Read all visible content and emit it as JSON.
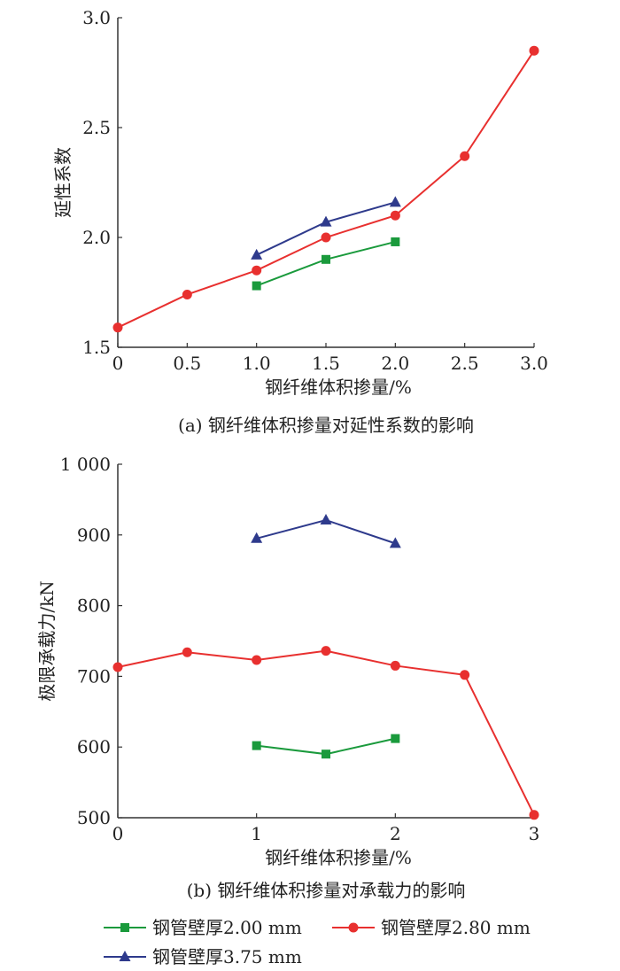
{
  "chart_data": [
    {
      "type": "line",
      "caption": "(a) 钢纤维体积掺量对延性系数的影响",
      "xlabel": "钢纤维体积掺量/%",
      "ylabel": "延性系数",
      "xlim": [
        0,
        3.0
      ],
      "ylim": [
        1.5,
        3.0
      ],
      "xticks": [
        "0",
        "0.5",
        "1.0",
        "1.5",
        "2.0",
        "2.5",
        "3.0"
      ],
      "yticks": [
        "1.5",
        "2.0",
        "2.5",
        "3.0"
      ],
      "grid": false,
      "series": [
        {
          "name": "钢管壁厚2.00 mm",
          "color": "#1a9a3c",
          "marker": "square",
          "x": [
            1.0,
            1.5,
            2.0
          ],
          "y": [
            1.78,
            1.9,
            1.98
          ]
        },
        {
          "name": "钢管壁厚2.80 mm",
          "color": "#e8302f",
          "marker": "circle",
          "x": [
            0,
            0.5,
            1.0,
            1.5,
            2.0,
            2.5,
            3.0
          ],
          "y": [
            1.59,
            1.74,
            1.85,
            2.0,
            2.1,
            2.37,
            2.85
          ]
        },
        {
          "name": "钢管壁厚3.75 mm",
          "color": "#2e3a8c",
          "marker": "triangle",
          "x": [
            1.0,
            1.5,
            2.0
          ],
          "y": [
            1.92,
            2.07,
            2.16
          ]
        }
      ]
    },
    {
      "type": "line",
      "caption": "(b) 钢纤维体积掺量对承载力的影响",
      "xlabel": "钢纤维体积掺量/%",
      "ylabel": "极限承载力/kN",
      "xlim": [
        0,
        3
      ],
      "ylim": [
        500,
        1000
      ],
      "xticks": [
        "0",
        "1",
        "2",
        "3"
      ],
      "yticks": [
        "500",
        "600",
        "700",
        "800",
        "900",
        "1 000"
      ],
      "grid": false,
      "series": [
        {
          "name": "钢管壁厚2.00 mm",
          "color": "#1a9a3c",
          "marker": "square",
          "x": [
            1,
            1.5,
            2
          ],
          "y": [
            602,
            590,
            612
          ]
        },
        {
          "name": "钢管壁厚2.80 mm",
          "color": "#e8302f",
          "marker": "circle",
          "x": [
            0,
            0.5,
            1,
            1.5,
            2,
            2.5,
            3
          ],
          "y": [
            713,
            734,
            723,
            736,
            715,
            702,
            504
          ]
        },
        {
          "name": "钢管壁厚3.75 mm",
          "color": "#2e3a8c",
          "marker": "triangle",
          "x": [
            1,
            1.5,
            2
          ],
          "y": [
            895,
            921,
            888
          ]
        }
      ]
    }
  ],
  "legend": {
    "placement": "bottom",
    "items": [
      "钢管壁厚2.00 mm",
      "钢管壁厚2.80 mm",
      "钢管壁厚3.75 mm"
    ]
  }
}
